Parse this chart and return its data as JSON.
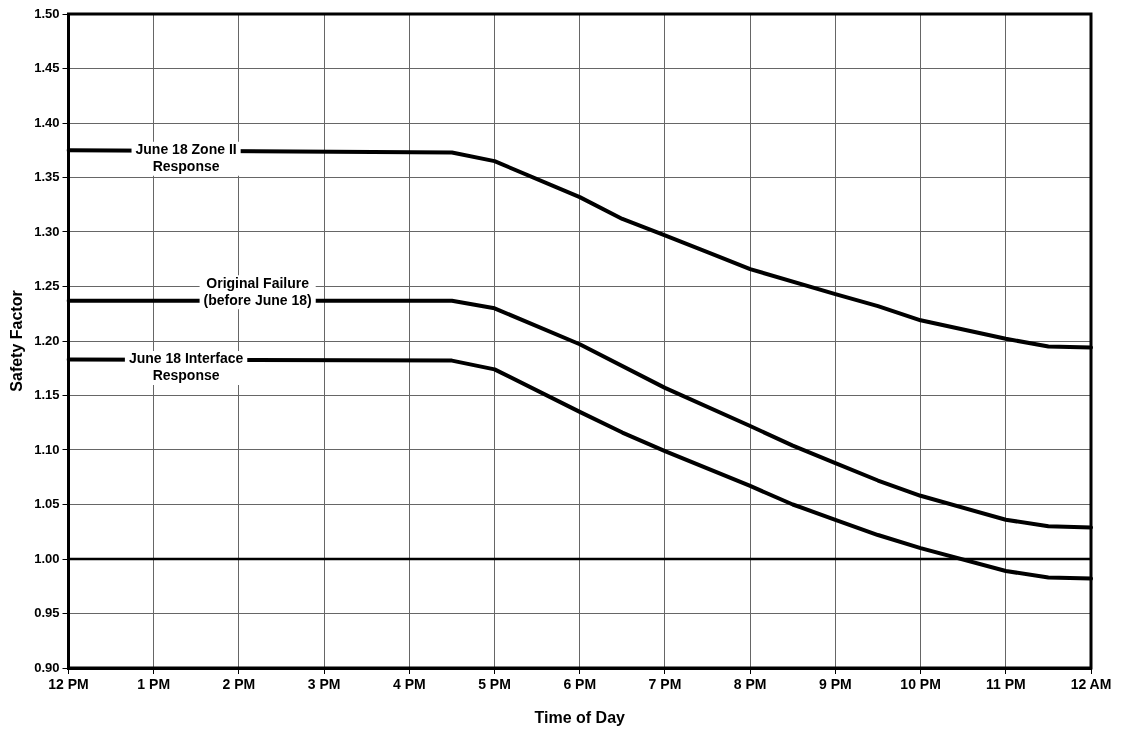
{
  "chart_data": {
    "type": "line",
    "xlabel": "Time of Day",
    "ylabel": "Safety Factor",
    "categories": [
      "12 PM",
      null,
      "1 PM",
      null,
      "2 PM",
      null,
      "3 PM",
      null,
      "4 PM",
      null,
      "5 PM",
      null,
      "6 PM",
      null,
      "7 PM",
      null,
      "8 PM",
      null,
      "9 PM",
      null,
      "10 PM",
      null,
      "11 PM",
      null,
      "12 AM"
    ],
    "ylim": [
      0.9,
      1.5
    ],
    "yticks": [
      {
        "value": 0.9,
        "label": "0.90"
      },
      {
        "value": 0.95,
        "label": "0.95"
      },
      {
        "value": 1.0,
        "label": "1.00"
      },
      {
        "value": 1.05,
        "label": "1.05"
      },
      {
        "value": 1.1,
        "label": "1.10"
      },
      {
        "value": 1.15,
        "label": "1.15"
      },
      {
        "value": 1.2,
        "label": "1.20"
      },
      {
        "value": 1.25,
        "label": "1.25"
      },
      {
        "value": 1.3,
        "label": "1.30"
      },
      {
        "value": 1.35,
        "label": "1.35"
      },
      {
        "value": 1.4,
        "label": "1.40"
      },
      {
        "value": 1.45,
        "label": "1.45"
      },
      {
        "value": 1.5,
        "label": "1.50"
      }
    ],
    "grid": true,
    "marker": "none",
    "line_style": "solid",
    "ref_lines": [
      {
        "axis": "y",
        "value": 1.0,
        "color": "#000000"
      }
    ],
    "series": [
      {
        "name": "June 18 Zone II Response",
        "color": "#000000",
        "values": [
          1.375,
          null,
          null,
          null,
          null,
          null,
          null,
          null,
          null,
          1.373,
          1.365,
          null,
          1.332,
          1.312,
          1.297,
          null,
          1.266,
          null,
          1.243,
          1.232,
          1.219,
          null,
          1.202,
          1.195,
          1.194
        ]
      },
      {
        "name": "Original Failure (before June 18)",
        "color": "#000000",
        "values": [
          1.237,
          null,
          null,
          null,
          null,
          null,
          null,
          null,
          null,
          1.237,
          1.23,
          null,
          1.197,
          null,
          1.157,
          null,
          1.122,
          1.104,
          1.088,
          1.072,
          1.058,
          null,
          1.036,
          1.03,
          1.029
        ]
      },
      {
        "name": "June 18 Interface Response",
        "color": "#000000",
        "values": [
          1.183,
          null,
          null,
          null,
          null,
          null,
          null,
          null,
          null,
          1.182,
          1.174,
          null,
          1.135,
          1.116,
          1.099,
          null,
          1.067,
          1.05,
          1.036,
          1.022,
          1.01,
          null,
          0.989,
          0.983,
          0.982
        ]
      }
    ]
  }
}
